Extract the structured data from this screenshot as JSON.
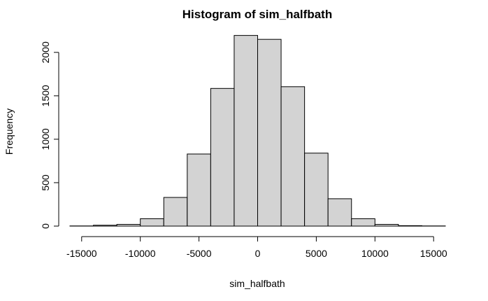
{
  "chart_data": {
    "type": "bar",
    "title": "Histogram of sim_halfbath",
    "xlabel": "sim_halfbath",
    "ylabel": "Frequency",
    "bin_edges": [
      -16000,
      -14000,
      -12000,
      -10000,
      -8000,
      -6000,
      -4000,
      -2000,
      0,
      2000,
      4000,
      6000,
      8000,
      10000,
      12000,
      14000,
      16000
    ],
    "values": [
      2,
      10,
      20,
      85,
      330,
      830,
      1585,
      2195,
      2150,
      1605,
      840,
      315,
      85,
      20,
      5,
      2
    ],
    "xlim": [
      -16000,
      16000
    ],
    "ylim": [
      0,
      2200
    ],
    "x_ticks": [
      -15000,
      -10000,
      -5000,
      0,
      5000,
      10000,
      15000
    ],
    "x_tick_labels": [
      "-15000",
      "-10000",
      "-5000",
      "0",
      "5000",
      "10000",
      "15000"
    ],
    "y_ticks": [
      0,
      500,
      1000,
      1500,
      2000
    ],
    "y_tick_labels": [
      "0",
      "500",
      "1000",
      "1500",
      "2000"
    ],
    "bar_fill": "#d3d3d3",
    "bar_stroke": "#000000",
    "grid": false,
    "legend": false
  }
}
